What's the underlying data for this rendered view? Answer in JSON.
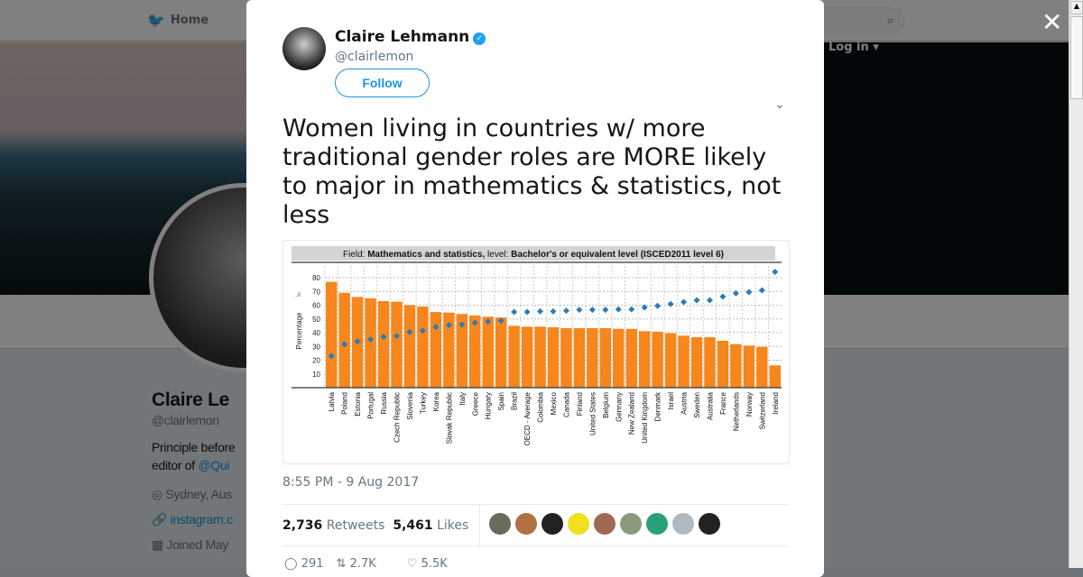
{
  "nav": {
    "home": "Home",
    "login": "Log in"
  },
  "profile": {
    "name": "Claire Le",
    "handle": "@clairlemon",
    "bio1": "Principle before",
    "bio2_prefix": "editor of ",
    "bio2_link": "@Qui",
    "location": "Sydney, Aus",
    "website": "instagram.c",
    "joined": "Joined May"
  },
  "tweet": {
    "name": "Claire Lehmann",
    "handle": "@clairlemon",
    "follow": "Follow",
    "text": "Women living in countries w/ more traditional gender roles are MORE likely to major in mathematics & statistics, not less",
    "time": "8:55 PM - 9 Aug 2017",
    "retweets": "2,736",
    "retweets_label": "Retweets",
    "likes": "5,461",
    "likes_label": "Likes",
    "replies_count": "291",
    "retweet_count": "2.7K",
    "like_count": "5.5K"
  },
  "liker_colors": [
    "#6b6b5a",
    "#b07040",
    "#222222",
    "#f0e020",
    "#a06a50",
    "#8a9a7a",
    "#2aa07a",
    "#b0b8c0",
    "#222222"
  ],
  "chart_data": {
    "type": "bar",
    "title_prefix": "Field: ",
    "title_field": "Mathematics and statistics,",
    "title_mid": " level: ",
    "title_level": "Bachelor's or equivalent level (ISCED2011 level 6)",
    "ylabel": "Percentage",
    "ylim": [
      0,
      90
    ],
    "yticks": [
      10,
      20,
      30,
      40,
      50,
      60,
      70,
      80
    ],
    "categories": [
      "Latvia",
      "Poland",
      "Estonia",
      "Portugal",
      "Russia",
      "Czech Republic",
      "Slovenia",
      "Turkey",
      "Korea",
      "Slovak Republic",
      "Italy",
      "Greece",
      "Hungary",
      "Spain",
      "Brazil",
      "OECD - Average",
      "Colombia",
      "Mexico",
      "Canada",
      "Finland",
      "United States",
      "Belgium",
      "Germany",
      "New Zealand",
      "United Kingdom",
      "Denmark",
      "Israel",
      "Austria",
      "Sweden",
      "Australia",
      "France",
      "Netherlands",
      "Norway",
      "Switzerland",
      "Ireland"
    ],
    "series": [
      {
        "name": "bars",
        "color": "#f7861c",
        "values": [
          77,
          69,
          66,
          65,
          63,
          62.5,
          60,
          59,
          55,
          54.6,
          53.6,
          52.5,
          51.6,
          51,
          45,
          44.4,
          44.4,
          43.9,
          43.3,
          43.3,
          43.3,
          43.3,
          42.8,
          42.8,
          41.1,
          40.7,
          39.6,
          37.8,
          36.7,
          36.7,
          34.1,
          31.7,
          30.6,
          29.7,
          16.2
        ]
      },
      {
        "name": "diamonds",
        "color": "#2b7bb9",
        "values": [
          23,
          31.5,
          33.7,
          35.2,
          37,
          37.6,
          40.4,
          41.5,
          44.2,
          45.5,
          45.9,
          47.2,
          48.1,
          48.7,
          55.1,
          55.1,
          55.5,
          55.5,
          56,
          56.6,
          56.6,
          56.6,
          57,
          57,
          58.4,
          59.5,
          60.8,
          62.3,
          63.6,
          63.6,
          66.2,
          68.6,
          69.5,
          70.8,
          84.2
        ]
      }
    ]
  }
}
